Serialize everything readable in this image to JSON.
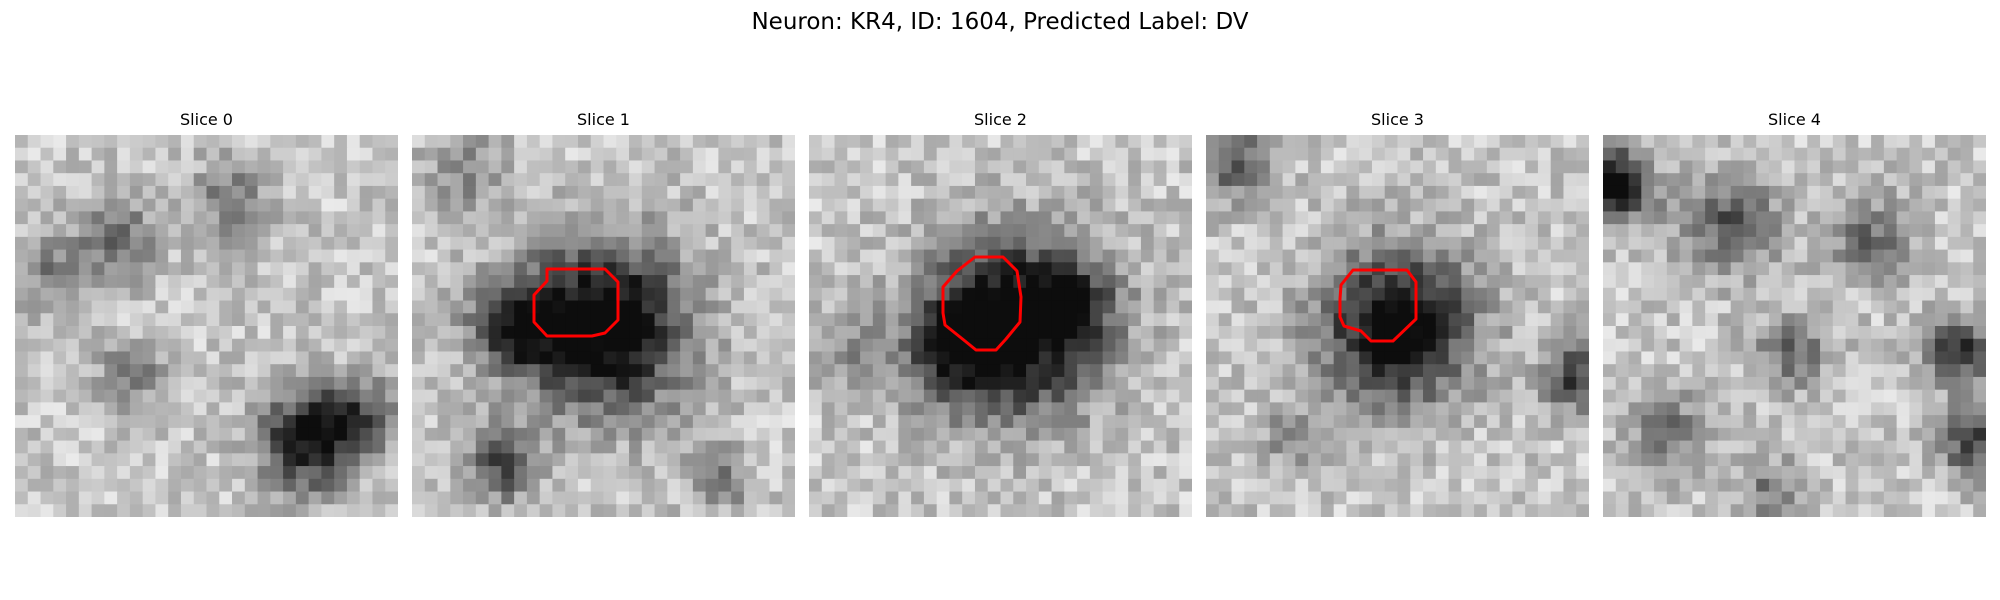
{
  "figure": {
    "title": "Neuron: KR4, ID: 1604, Predicted Label: DV",
    "contour_color": "#ff0000"
  },
  "panels": [
    {
      "title": "Slice 0",
      "has_contour": false
    },
    {
      "title": "Slice 1",
      "has_contour": true
    },
    {
      "title": "Slice 2",
      "has_contour": true
    },
    {
      "title": "Slice 3",
      "has_contour": true
    },
    {
      "title": "Slice 4",
      "has_contour": false
    }
  ]
}
